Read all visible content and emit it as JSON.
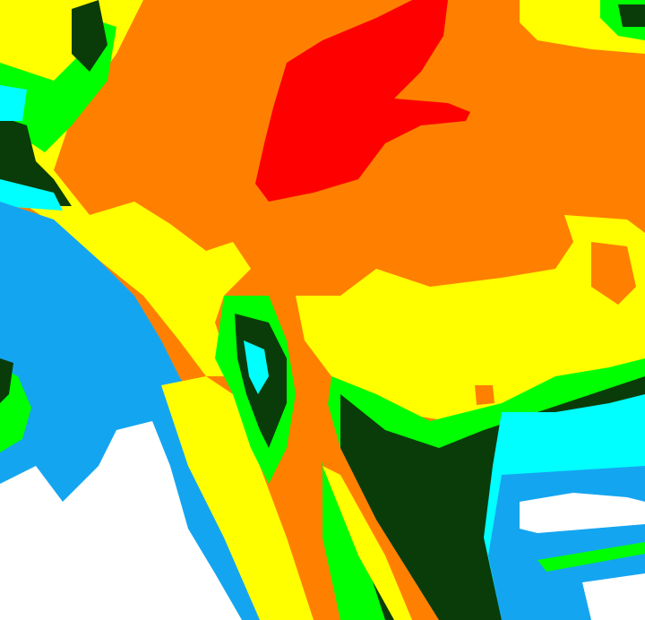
{
  "image": {
    "type": "classified satellite imagery",
    "palette": {
      "orange": "#ff8000",
      "red": "#ff0000",
      "yellow": "#ffff00",
      "green": "#00ff00",
      "dark_green": "#0a3c0a",
      "cyan": "#00ffff",
      "blue": "#14a5f0",
      "white": "#ffffff"
    }
  }
}
